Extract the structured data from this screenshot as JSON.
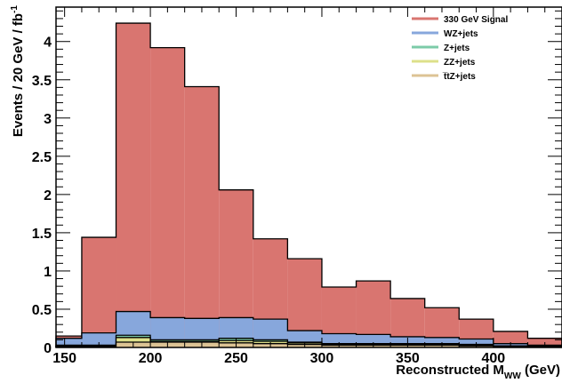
{
  "chart_data": {
    "type": "bar",
    "histogram": "stacked",
    "x": {
      "bin_edges": [
        140,
        160,
        180,
        200,
        220,
        240,
        260,
        280,
        300,
        320,
        340,
        360,
        380,
        400,
        420,
        440
      ],
      "range": [
        145,
        440
      ],
      "ticks": [
        150,
        200,
        250,
        300,
        350,
        400
      ],
      "tick_labels": [
        "150",
        "200",
        "250",
        "300",
        "350",
        "400"
      ],
      "label_main": "Reconstructed M",
      "label_sub": "WW",
      "label_unit": " (GeV)"
    },
    "y": {
      "range": [
        0,
        4.45
      ],
      "ticks": [
        0,
        0.5,
        1,
        1.5,
        2,
        2.5,
        3,
        3.5,
        4
      ],
      "tick_labels": [
        "0",
        "0.5",
        "1",
        "1.5",
        "2",
        "2.5",
        "3",
        "3.5",
        "4"
      ],
      "label_main": "Events / 20 GeV / fb",
      "label_sup": "-1"
    },
    "series": [
      {
        "name": "330 GeV Signal",
        "color": "#d97570",
        "values": [
          0.15,
          1.44,
          4.24,
          3.92,
          3.41,
          2.06,
          1.42,
          1.16,
          0.79,
          0.87,
          0.64,
          0.52,
          0.37,
          0.21,
          0.12
        ]
      },
      {
        "name": "WZ+jets",
        "color": "#87a7dc",
        "values": [
          0.12,
          0.19,
          0.47,
          0.39,
          0.38,
          0.39,
          0.37,
          0.22,
          0.18,
          0.17,
          0.14,
          0.13,
          0.11,
          0.05,
          0.03
        ]
      },
      {
        "name": "Z+jets",
        "color": "#7ccba8",
        "values": [
          0.03,
          0.03,
          0.16,
          0.1,
          0.1,
          0.12,
          0.1,
          0.07,
          0.05,
          0.05,
          0.05,
          0.05,
          0.04,
          0.02,
          0.02
        ]
      },
      {
        "name": "ZZ+jets",
        "color": "#dde08a",
        "values": [
          0.02,
          0.02,
          0.13,
          0.08,
          0.08,
          0.09,
          0.08,
          0.06,
          0.04,
          0.04,
          0.04,
          0.04,
          0.03,
          0.02,
          0.01
        ]
      },
      {
        "name": "t̅tZ+jets",
        "color": "#dcc394",
        "values": [
          0.01,
          0.01,
          0.07,
          0.07,
          0.07,
          0.06,
          0.05,
          0.04,
          0.03,
          0.03,
          0.03,
          0.03,
          0.02,
          0.01,
          0.01
        ]
      }
    ],
    "legend_position": "top-right"
  }
}
